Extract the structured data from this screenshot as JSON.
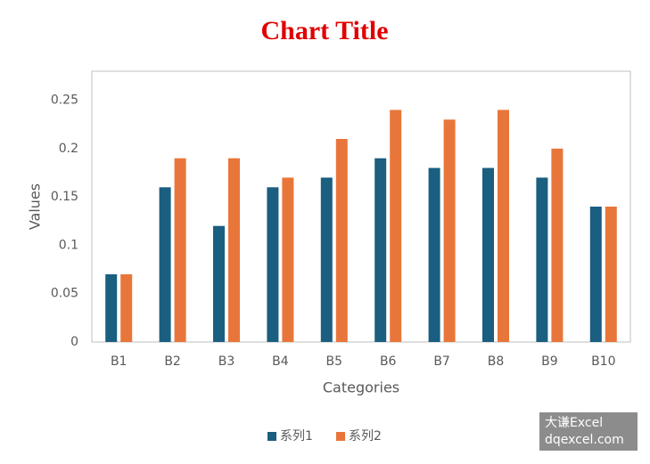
{
  "chart_data": {
    "type": "bar",
    "title": "Chart Title",
    "x_label": "Categories",
    "y_label": "Values",
    "categories": [
      "B1",
      "B2",
      "B3",
      "B4",
      "B5",
      "B6",
      "B7",
      "B8",
      "B9",
      "B10"
    ],
    "series": [
      {
        "name": "系列1",
        "color": "#1a5e80",
        "values": [
          0.07,
          0.16,
          0.12,
          0.16,
          0.17,
          0.19,
          0.18,
          0.18,
          0.17,
          0.14
        ]
      },
      {
        "name": "系列2",
        "color": "#e8763a",
        "values": [
          0.07,
          0.19,
          0.19,
          0.17,
          0.21,
          0.24,
          0.23,
          0.24,
          0.2,
          0.14
        ]
      }
    ],
    "ylim": [
      0,
      0.28
    ],
    "yticks": [
      0,
      0.05,
      0.1,
      0.15,
      0.2,
      0.25
    ],
    "grid": false,
    "legend": "bottom"
  },
  "watermark": [
    "大谦Excel",
    "dqexcel.com"
  ]
}
